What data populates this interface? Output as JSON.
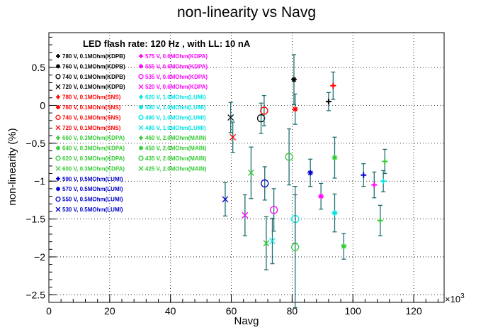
{
  "chart_data": {
    "type": "scatter",
    "title": "non-linearity vs Navg",
    "xlabel": "Navg",
    "ylabel": "non-linearity (%)",
    "x_multiplier": "×10",
    "x_multiplier_exp": "3",
    "xlim": [
      0,
      130000
    ],
    "ylim": [
      -2.6,
      0.96
    ],
    "xticks": [
      0,
      20000,
      40000,
      60000,
      80000,
      100000,
      120000
    ],
    "xtick_labels": [
      "0",
      "20",
      "40",
      "60",
      "80",
      "100",
      "120"
    ],
    "yticks": [
      -2.5,
      -2,
      -1.5,
      -1,
      -0.5,
      0,
      0.5
    ],
    "ytick_labels": [
      "−2.5",
      "−2",
      "−1.5",
      "−1",
      "−0.5",
      "0",
      "0.5"
    ],
    "grid": true,
    "annotation": "LED flash rate: 120 Hz , with LL: 10 nA",
    "errorbar_color": "#1f6f6f",
    "series": [
      {
        "name": "780 V, 0.1MOhm(KDPB)",
        "marker": "+",
        "color": "#000000",
        "x": 92000,
        "y": 0.05,
        "err": 0.12
      },
      {
        "name": "760 V, 0.1MOhm(KDPB)",
        "marker": "*",
        "color": "#000000",
        "x": 80600,
        "y": 0.34,
        "err": 0.33
      },
      {
        "name": "740 V, 0.1MOhm(KDPB)",
        "marker": "O",
        "color": "#000000",
        "x": 69800,
        "y": -0.17,
        "err": 0.2
      },
      {
        "name": "720 V, 0.1MOhm(KDPB)",
        "marker": "X",
        "color": "#000000",
        "x": 59800,
        "y": -0.16,
        "err": 0.2
      },
      {
        "name": "780 V, 0.1MOhm(SNS)",
        "marker": "+",
        "color": "#ff0000",
        "x": 93500,
        "y": 0.26,
        "err": 0.18
      },
      {
        "name": "760 V, 0.1MOhm(SNS)",
        "marker": "*",
        "color": "#ff0000",
        "x": 81000,
        "y": -0.05,
        "err": 0.2
      },
      {
        "name": "740 V, 0.1MOhm(SNS)",
        "marker": "O",
        "color": "#ff0000",
        "x": 70800,
        "y": -0.07,
        "err": 0.2
      },
      {
        "name": "720 V, 0.1MOhm(SNS)",
        "marker": "X",
        "color": "#ff0000",
        "x": 60500,
        "y": -0.42,
        "err": 0.2
      },
      {
        "name": "660 V, 0.3MOhm(KDPA)",
        "marker": "+",
        "color": "#33cc33",
        "x": 110500,
        "y": -0.74,
        "err": 0.16
      },
      {
        "name": "640 V, 0.3MOhm(KDPA)",
        "marker": "*",
        "color": "#33cc33",
        "x": 94000,
        "y": -0.69,
        "err": 0.27
      },
      {
        "name": "620 V, 0.3MOhm(KDPA)",
        "marker": "O",
        "color": "#33cc33",
        "x": 79000,
        "y": -0.68,
        "err": 0.37
      },
      {
        "name": "600 V, 0.3MOhm(KDPA)",
        "marker": "X",
        "color": "#33cc33",
        "x": 66500,
        "y": -0.89,
        "err": 0.34
      },
      {
        "name": "590 V, 0.5MOhm(LUMI)",
        "marker": "+",
        "color": "#0000cc",
        "x": 103500,
        "y": -0.92,
        "err": 0.15
      },
      {
        "name": "570 V, 0.5MOhm(LUMI)",
        "marker": "*",
        "color": "#0000cc",
        "x": 86000,
        "y": -0.89,
        "err": 0.18
      },
      {
        "name": "550 V, 0.5MOhm(LUMI)",
        "marker": "O",
        "color": "#0000cc",
        "x": 71000,
        "y": -1.03,
        "err": 0.22
      },
      {
        "name": "530 V, 0.5MOhm(LUMI)",
        "marker": "X",
        "color": "#0000cc",
        "x": 58000,
        "y": -1.24,
        "err": 0.22
      },
      {
        "name": "575 V, 0.6MOhm(KDPA)",
        "marker": "+",
        "color": "#ff00ff",
        "x": 107000,
        "y": -1.05,
        "err": 0.17
      },
      {
        "name": "555 V, 0.6MOhm(KDPA)",
        "marker": "*",
        "color": "#ff00ff",
        "x": 89500,
        "y": -1.2,
        "err": 0.17
      },
      {
        "name": "535 V, 0.6MOhm(KDPA)",
        "marker": "O",
        "color": "#ff00ff",
        "x": 74000,
        "y": -1.38,
        "err": 0.28
      },
      {
        "name": "520 V, 0.6MOhm(KDPA)",
        "marker": "X",
        "color": "#ff00ff",
        "x": 64500,
        "y": -1.45,
        "err": 0.27
      },
      {
        "name": "620 V, 1.0MOhm(LUMI)",
        "marker": "+",
        "color": "#00e5e5",
        "x": 110000,
        "y": -1.0,
        "err": 0.14
      },
      {
        "name": "580 V, 1.0MOhm(LUMI)",
        "marker": "*",
        "color": "#00e5e5",
        "x": 94000,
        "y": -1.42,
        "err": 0.25
      },
      {
        "name": "490 V, 1.0MOhm(LUMI)",
        "marker": "O",
        "color": "#00e5e5",
        "x": 81000,
        "y": -1.5,
        "err": 0.32
      },
      {
        "name": "480 V, 1.0MOhm(LUMI)",
        "marker": "X",
        "color": "#00e5e5",
        "x": 73500,
        "y": -1.79,
        "err": 0.3
      },
      {
        "name": "460 V, 2.0MOhm(MAIN)",
        "marker": "+",
        "color": "#33cc33",
        "x": 109000,
        "y": -1.52,
        "err": 0.2
      },
      {
        "name": "450 V, 2.0MOhm(MAIN)",
        "marker": "*",
        "color": "#33cc33",
        "x": 97000,
        "y": -1.86,
        "err": 0.17
      },
      {
        "name": "435 V, 2.0MOhm(MAIN)",
        "marker": "O",
        "color": "#33cc33",
        "x": 81000,
        "y": -1.87,
        "err": 0.8
      },
      {
        "name": "425 V, 2.0MOhm(MAIN)",
        "marker": "X",
        "color": "#33cc33",
        "x": 71500,
        "y": -1.82,
        "err": 0.35
      }
    ],
    "legend_rows": [
      {
        "left": "780 V, 0.1MOhm(KDPB)",
        "left_marker": "+",
        "left_color": "#000000",
        "right": "575 V, 0.6MOhm(KDPA)",
        "right_marker": "+",
        "right_color": "#ff00ff"
      },
      {
        "left": "760 V, 0.1MOhm(KDPB)",
        "left_marker": "*",
        "left_color": "#000000",
        "right": "555 V, 0.6MOhm(KDPA)",
        "right_marker": "*",
        "right_color": "#ff00ff"
      },
      {
        "left": "740 V, 0.1MOhm(KDPB)",
        "left_marker": "O",
        "left_color": "#000000",
        "right": "535 V, 0.6MOhm(KDPA)",
        "right_marker": "O",
        "right_color": "#ff00ff"
      },
      {
        "left": "720 V, 0.1MOhm(KDPB)",
        "left_marker": "X",
        "left_color": "#000000",
        "right": "520 V, 0.6MOhm(KDPA)",
        "right_marker": "X",
        "right_color": "#ff00ff"
      },
      {
        "left": "780 V, 0.1MOhm(SNS)",
        "left_marker": "+",
        "left_color": "#ff0000",
        "right": "620 V, 1.0MOhm(LUMI)",
        "right_marker": "+",
        "right_color": "#00e5e5"
      },
      {
        "left": "760 V, 0.1MOhm(SNS)",
        "left_marker": "*",
        "left_color": "#ff0000",
        "right": "580 V, 1.0MOhm(LUMI)",
        "right_marker": "*",
        "right_color": "#00e5e5"
      },
      {
        "left": "740 V, 0.1MOhm(SNS)",
        "left_marker": "O",
        "left_color": "#ff0000",
        "right": "490 V, 1.0MOhm(LUMI)",
        "right_marker": "O",
        "right_color": "#00e5e5"
      },
      {
        "left": "720 V, 0.1MOhm(SNS)",
        "left_marker": "X",
        "left_color": "#ff0000",
        "right": "480 V, 1.0MOhm(LUMI)",
        "right_marker": "X",
        "right_color": "#00e5e5"
      },
      {
        "left": "660 V, 0.3MOhm(KDPA)",
        "left_marker": "+",
        "left_color": "#33cc33",
        "right": "460 V, 2.0MOhm(MAIN)",
        "right_marker": "+",
        "right_color": "#33cc33"
      },
      {
        "left": "640 V, 0.3MOhm(KDPA)",
        "left_marker": "*",
        "left_color": "#33cc33",
        "right": "450 V, 2.0MOhm(MAIN)",
        "right_marker": "*",
        "right_color": "#33cc33"
      },
      {
        "left": "620 V, 0.3MOhm(KDPA)",
        "left_marker": "O",
        "left_color": "#33cc33",
        "right": "435 V, 2.0MOhm(MAIN)",
        "right_marker": "O",
        "right_color": "#33cc33"
      },
      {
        "left": "600 V, 0.3MOhm(KDPA)",
        "left_marker": "X",
        "left_color": "#33cc33",
        "right": "425 V, 2.0MOhm(MAIN)",
        "right_marker": "X",
        "right_color": "#33cc33"
      },
      {
        "left": "590 V, 0.5MOhm(LUMI)",
        "left_marker": "+",
        "left_color": "#0000cc",
        "right": "",
        "right_marker": "",
        "right_color": ""
      },
      {
        "left": "570 V, 0.5MOhm(LUMI)",
        "left_marker": "*",
        "left_color": "#0000cc",
        "right": "",
        "right_marker": "",
        "right_color": ""
      },
      {
        "left": "550 V, 0.5MOhm(LUMI)",
        "left_marker": "O",
        "left_color": "#0000cc",
        "right": "",
        "right_marker": "",
        "right_color": ""
      },
      {
        "left": "530 V, 0.5MOhm(LUMI)",
        "left_marker": "X",
        "left_color": "#0000cc",
        "right": "",
        "right_marker": "",
        "right_color": ""
      }
    ]
  }
}
